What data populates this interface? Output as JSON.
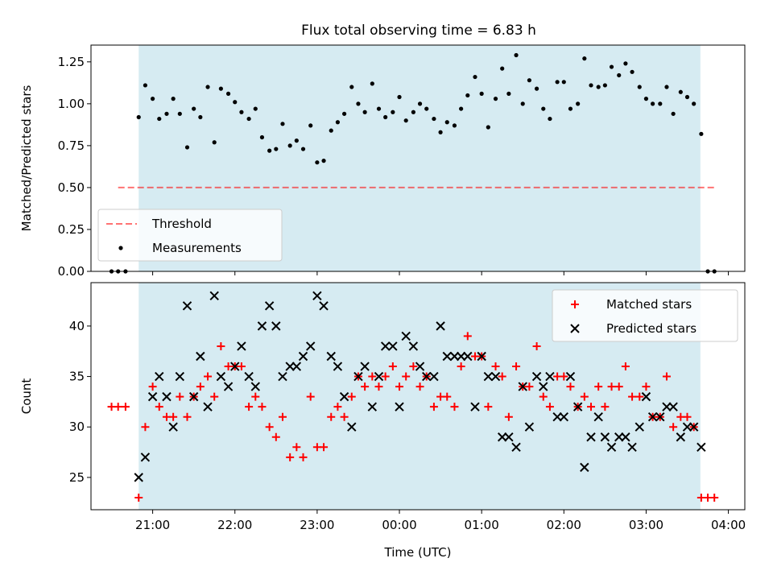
{
  "title": "Flux total observing time = 6.83 h",
  "colors": {
    "observing_band": "#add8e6",
    "threshold": "#ff0000",
    "measurements": "#000000",
    "matched": "#ff0000",
    "predicted": "#000000"
  },
  "chart_data": [
    {
      "type": "scatter",
      "panel": "top",
      "xlabel": "",
      "ylabel": "Matched/Predicted stars",
      "ylim": [
        0,
        1.35
      ],
      "yticks": [
        0,
        0.25,
        0.5,
        0.75,
        1.0,
        1.25
      ],
      "ytick_labels": [
        "0.00",
        "0.25",
        "0.50",
        "0.75",
        "1.00",
        "1.25"
      ],
      "xlim_hours_from_midnight": [
        -3.75,
        4.2
      ],
      "xticks_hours": [
        -3,
        -2,
        -1,
        0,
        1,
        2,
        3,
        4
      ],
      "xtick_labels": [
        "",
        "",
        "",
        "",
        "",
        "",
        "",
        ""
      ],
      "shaded_span_hours": [
        -3.17,
        3.66
      ],
      "threshold": {
        "name": "Threshold",
        "y": 0.5,
        "x_from": -3.42,
        "x_to": 3.83
      },
      "legend": {
        "position": "lower-left",
        "entries": [
          "Threshold",
          "Measurements"
        ]
      },
      "series": [
        {
          "name": "Measurements",
          "x": [
            -3.5,
            -3.42,
            -3.33,
            -3.17,
            -3.09,
            -3.0,
            -2.92,
            -2.83,
            -2.75,
            -2.67,
            -2.58,
            -2.5,
            -2.42,
            -2.33,
            -2.25,
            -2.17,
            -2.08,
            -2.0,
            -1.92,
            -1.83,
            -1.75,
            -1.67,
            -1.58,
            -1.5,
            -1.42,
            -1.33,
            -1.25,
            -1.17,
            -1.08,
            -1.0,
            -0.92,
            -0.83,
            -0.75,
            -0.67,
            -0.58,
            -0.5,
            -0.42,
            -0.33,
            -0.25,
            -0.17,
            -0.08,
            0.0,
            0.08,
            0.17,
            0.25,
            0.33,
            0.42,
            0.5,
            0.58,
            0.67,
            0.75,
            0.83,
            0.92,
            1.0,
            1.08,
            1.17,
            1.25,
            1.33,
            1.42,
            1.5,
            1.58,
            1.67,
            1.75,
            1.83,
            1.92,
            2.0,
            2.08,
            2.17,
            2.25,
            2.33,
            2.42,
            2.5,
            2.58,
            2.67,
            2.75,
            2.83,
            2.92,
            3.0,
            3.08,
            3.17,
            3.25,
            3.33,
            3.42,
            3.5,
            3.58,
            3.67,
            3.75,
            3.83
          ],
          "y": [
            0.0,
            0.0,
            0.0,
            0.92,
            1.11,
            1.03,
            0.91,
            0.94,
            1.03,
            0.94,
            0.74,
            0.97,
            0.92,
            1.1,
            0.77,
            1.09,
            1.06,
            1.01,
            0.95,
            0.91,
            0.97,
            0.8,
            0.72,
            0.73,
            0.88,
            0.75,
            0.78,
            0.73,
            0.87,
            0.65,
            0.66,
            0.84,
            0.89,
            0.94,
            1.1,
            1.0,
            0.95,
            1.12,
            0.97,
            0.92,
            0.95,
            1.04,
            0.9,
            0.95,
            1.0,
            0.97,
            0.91,
            0.83,
            0.89,
            0.87,
            0.97,
            1.05,
            1.16,
            1.06,
            0.86,
            1.03,
            1.21,
            1.06,
            1.29,
            1.0,
            1.14,
            1.09,
            0.97,
            0.91,
            1.13,
            1.13,
            0.97,
            1.0,
            1.27,
            1.11,
            1.1,
            1.11,
            1.22,
            1.17,
            1.24,
            1.19,
            1.1,
            1.03,
            1.0,
            1.0,
            1.1,
            0.94,
            1.07,
            1.04,
            1.0,
            0.82,
            0.0,
            0.0
          ]
        }
      ]
    },
    {
      "type": "scatter",
      "panel": "bottom",
      "xlabel": "Time (UTC)",
      "ylabel": "Count",
      "ylim": [
        21.8,
        44.3
      ],
      "yticks": [
        25,
        30,
        35,
        40
      ],
      "ytick_labels": [
        "25",
        "30",
        "35",
        "40"
      ],
      "xlim_hours_from_midnight": [
        -3.75,
        4.2
      ],
      "xticks_hours": [
        -3,
        -2,
        -1,
        0,
        1,
        2,
        3,
        4
      ],
      "xtick_labels": [
        "21:00",
        "22:00",
        "23:00",
        "00:00",
        "01:00",
        "02:00",
        "03:00",
        "04:00"
      ],
      "shaded_span_hours": [
        -3.17,
        3.66
      ],
      "legend": {
        "position": "top-right",
        "entries": [
          "Matched stars",
          "Predicted stars"
        ]
      },
      "series": [
        {
          "name": "Matched stars",
          "marker": "plus",
          "x": [
            -3.5,
            -3.42,
            -3.33,
            -3.17,
            -3.09,
            -3.0,
            -2.92,
            -2.83,
            -2.75,
            -2.67,
            -2.58,
            -2.5,
            -2.42,
            -2.33,
            -2.25,
            -2.17,
            -2.08,
            -2.0,
            -1.92,
            -1.83,
            -1.75,
            -1.67,
            -1.58,
            -1.5,
            -1.42,
            -1.33,
            -1.25,
            -1.17,
            -1.08,
            -1.0,
            -0.92,
            -0.83,
            -0.75,
            -0.67,
            -0.58,
            -0.5,
            -0.42,
            -0.33,
            -0.25,
            -0.17,
            -0.08,
            0.0,
            0.08,
            0.17,
            0.25,
            0.33,
            0.42,
            0.5,
            0.58,
            0.67,
            0.75,
            0.83,
            0.92,
            1.0,
            1.08,
            1.17,
            1.25,
            1.33,
            1.42,
            1.5,
            1.58,
            1.67,
            1.75,
            1.83,
            1.92,
            2.0,
            2.08,
            2.17,
            2.25,
            2.33,
            2.42,
            2.5,
            2.58,
            2.67,
            2.75,
            2.83,
            2.92,
            3.0,
            3.08,
            3.17,
            3.25,
            3.33,
            3.42,
            3.5,
            3.58,
            3.67,
            3.75,
            3.83
          ],
          "y": [
            32,
            32,
            32,
            23,
            30,
            34,
            32,
            31,
            31,
            33,
            31,
            33,
            34,
            35,
            33,
            38,
            36,
            36,
            36,
            32,
            33,
            32,
            30,
            29,
            31,
            27,
            28,
            27,
            33,
            28,
            28,
            31,
            32,
            31,
            33,
            35,
            34,
            35,
            34,
            35,
            36,
            34,
            35,
            36,
            34,
            35,
            32,
            33,
            33,
            32,
            36,
            39,
            37,
            37,
            32,
            36,
            35,
            31,
            36,
            34,
            34,
            38,
            33,
            32,
            35,
            35,
            34,
            32,
            33,
            32,
            34,
            32,
            34,
            34,
            36,
            33,
            33,
            34,
            31,
            31,
            35,
            30,
            31,
            31,
            30,
            23,
            23,
            23
          ]
        },
        {
          "name": "Predicted stars",
          "marker": "x",
          "x": [
            -3.17,
            -3.09,
            -3.0,
            -2.92,
            -2.83,
            -2.75,
            -2.67,
            -2.58,
            -2.5,
            -2.42,
            -2.33,
            -2.25,
            -2.17,
            -2.08,
            -2.0,
            -1.92,
            -1.83,
            -1.75,
            -1.67,
            -1.58,
            -1.5,
            -1.42,
            -1.33,
            -1.25,
            -1.17,
            -1.08,
            -1.0,
            -0.92,
            -0.83,
            -0.75,
            -0.67,
            -0.58,
            -0.5,
            -0.42,
            -0.33,
            -0.25,
            -0.17,
            -0.08,
            0.0,
            0.08,
            0.17,
            0.25,
            0.33,
            0.42,
            0.5,
            0.58,
            0.67,
            0.75,
            0.83,
            0.92,
            1.0,
            1.08,
            1.17,
            1.25,
            1.33,
            1.42,
            1.5,
            1.58,
            1.67,
            1.75,
            1.83,
            1.92,
            2.0,
            2.08,
            2.17,
            2.25,
            2.33,
            2.42,
            2.5,
            2.58,
            2.67,
            2.75,
            2.83,
            2.92,
            3.0,
            3.08,
            3.17,
            3.25,
            3.33,
            3.42,
            3.5,
            3.58,
            3.67
          ],
          "y": [
            25,
            27,
            33,
            35,
            33,
            30,
            35,
            42,
            33,
            37,
            32,
            43,
            35,
            34,
            36,
            38,
            35,
            34,
            40,
            42,
            40,
            35,
            36,
            36,
            37,
            38,
            43,
            42,
            37,
            36,
            33,
            30,
            35,
            36,
            32,
            35,
            38,
            38,
            32,
            39,
            38,
            36,
            35,
            35,
            40,
            37,
            37,
            37,
            37,
            32,
            37,
            35,
            35,
            29,
            29,
            28,
            34,
            30,
            35,
            34,
            35,
            31,
            31,
            35,
            32,
            26,
            29,
            31,
            29,
            28,
            29,
            29,
            28,
            30,
            33,
            31,
            31,
            32,
            32,
            29,
            30,
            30,
            28
          ]
        }
      ]
    }
  ]
}
